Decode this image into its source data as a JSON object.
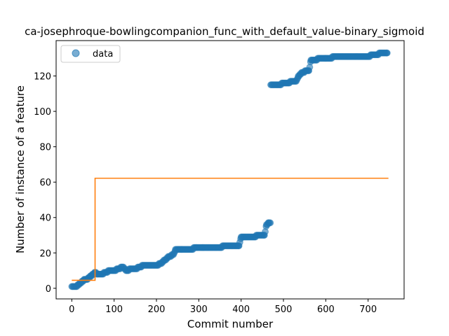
{
  "chart_data": {
    "type": "scatter",
    "title": "ca-josephroque-bowlingcompanion_func_with_default_value-binary_sigmoid",
    "xlabel": "Commit number",
    "ylabel": "Number of instance of a feature",
    "xlim": [
      -37,
      785
    ],
    "ylim": [
      -6,
      140
    ],
    "xticks": [
      0,
      100,
      200,
      300,
      400,
      500,
      600,
      700
    ],
    "yticks": [
      0,
      20,
      40,
      60,
      80,
      100,
      120
    ],
    "grid": false,
    "legend": {
      "position": "top-left",
      "entries": [
        "data"
      ]
    },
    "colors": {
      "data": "#1f77b4",
      "fit": "#ff7f0e"
    },
    "series": [
      {
        "name": "data",
        "kind": "scatter",
        "segments": [
          [
            0,
            1
          ],
          [
            10,
            1
          ],
          [
            15,
            2
          ],
          [
            20,
            3
          ],
          [
            25,
            4
          ],
          [
            30,
            5
          ],
          [
            35,
            5
          ],
          [
            40,
            6
          ],
          [
            45,
            7
          ],
          [
            50,
            8
          ],
          [
            55,
            9
          ],
          [
            60,
            8
          ],
          [
            70,
            8
          ],
          [
            80,
            9
          ],
          [
            90,
            10
          ],
          [
            100,
            10
          ],
          [
            110,
            11
          ],
          [
            120,
            12
          ],
          [
            130,
            10
          ],
          [
            140,
            11
          ],
          [
            150,
            11
          ],
          [
            160,
            12
          ],
          [
            170,
            13
          ],
          [
            180,
            13
          ],
          [
            190,
            13
          ],
          [
            200,
            13
          ],
          [
            210,
            14
          ],
          [
            220,
            16
          ],
          [
            230,
            18
          ],
          [
            240,
            19
          ],
          [
            245,
            22
          ],
          [
            260,
            22
          ],
          [
            280,
            22
          ],
          [
            295,
            23
          ],
          [
            310,
            23
          ],
          [
            330,
            23
          ],
          [
            350,
            23
          ],
          [
            360,
            24
          ],
          [
            380,
            24
          ],
          [
            395,
            24
          ],
          [
            400,
            29
          ],
          [
            420,
            29
          ],
          [
            430,
            29
          ],
          [
            440,
            30
          ],
          [
            450,
            30
          ],
          [
            455,
            30
          ],
          [
            460,
            36
          ],
          [
            465,
            37
          ],
          [
            470,
            115
          ],
          [
            480,
            115
          ],
          [
            490,
            115
          ],
          [
            500,
            116
          ],
          [
            510,
            116
          ],
          [
            520,
            117
          ],
          [
            530,
            117
          ],
          [
            535,
            120
          ],
          [
            545,
            122
          ],
          [
            555,
            123
          ],
          [
            560,
            123
          ],
          [
            565,
            129
          ],
          [
            575,
            129
          ],
          [
            585,
            130
          ],
          [
            600,
            130
          ],
          [
            610,
            130
          ],
          [
            620,
            131
          ],
          [
            640,
            131
          ],
          [
            660,
            131
          ],
          [
            680,
            131
          ],
          [
            700,
            131
          ],
          [
            710,
            132
          ],
          [
            720,
            132
          ],
          [
            730,
            133
          ],
          [
            740,
            133
          ],
          [
            745,
            133
          ]
        ]
      },
      {
        "kind": "line",
        "points": [
          [
            0,
            4.5
          ],
          [
            55,
            4.5
          ],
          [
            55,
            62.2
          ],
          [
            748,
            62.2
          ]
        ]
      }
    ]
  }
}
